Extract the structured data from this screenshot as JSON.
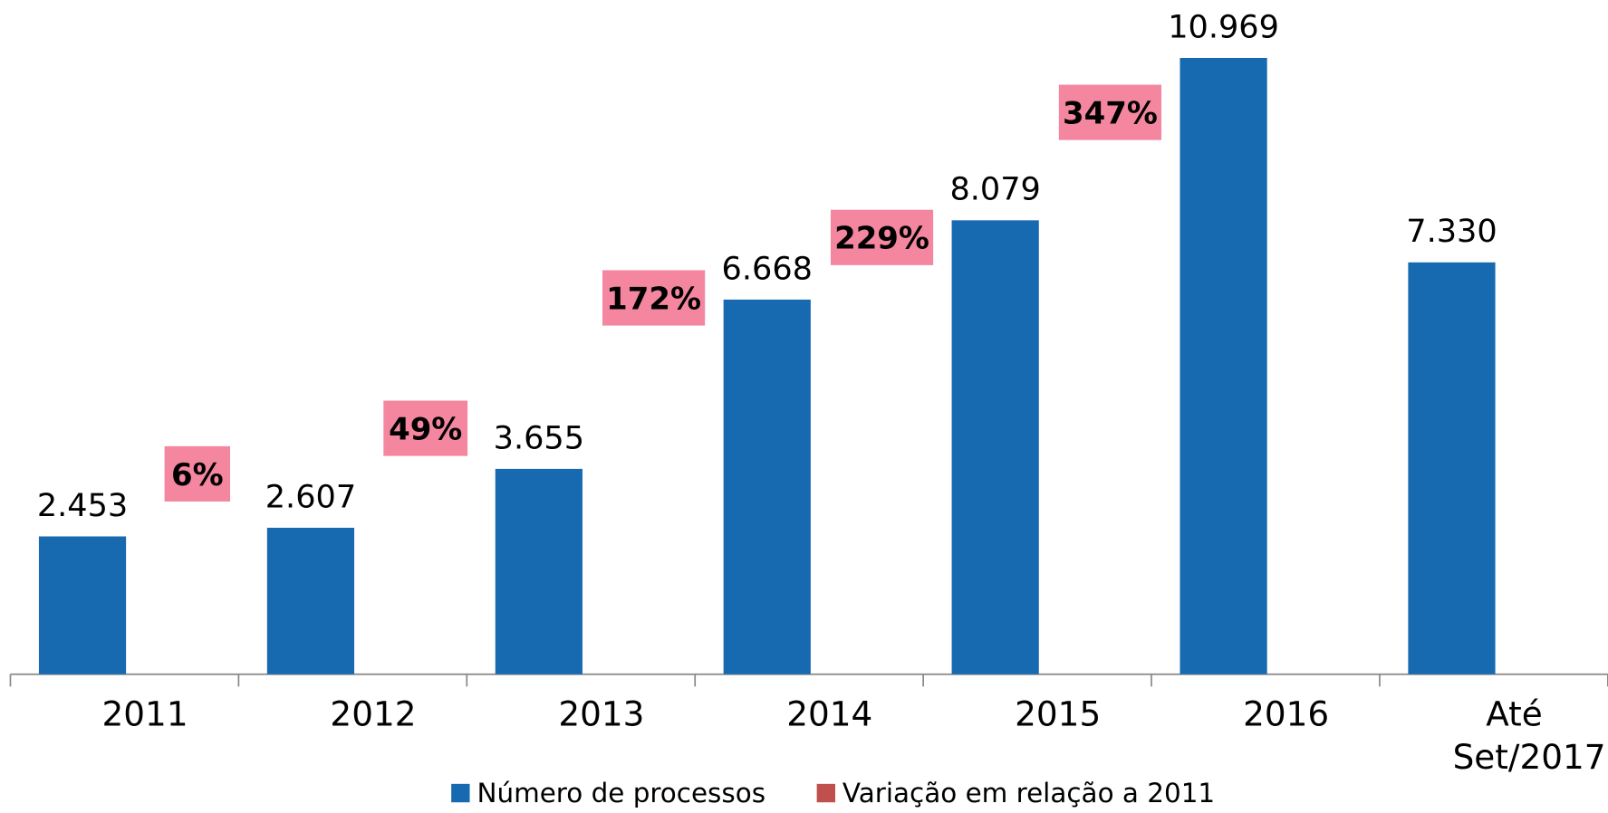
{
  "chart_data": {
    "type": "bar",
    "categories": [
      "2011",
      "2012",
      "2013",
      "2014",
      "2015",
      "2016",
      "Até Set/2017"
    ],
    "series": [
      {
        "name": "Número de processos",
        "color": "#1769b0",
        "values": [
          2453,
          2607,
          3655,
          6668,
          8079,
          10969,
          7330
        ],
        "value_labels": [
          "2.453",
          "2.607",
          "3.655",
          "6.668",
          "8.079",
          "10.969",
          "7.330"
        ]
      },
      {
        "name": "Variação em relação a 2011",
        "color": "#c0504d",
        "label_color": "#f4879f",
        "axis": "y2",
        "values": [
          6,
          49,
          172,
          229,
          347,
          null,
          null
        ],
        "value_labels": [
          "6%",
          "49%",
          "172%",
          "229%",
          "347%",
          null,
          null
        ]
      }
    ],
    "ylim": [
      0,
      12000
    ],
    "y2lim": [
      -183,
      453
    ],
    "legend": "bottom"
  }
}
